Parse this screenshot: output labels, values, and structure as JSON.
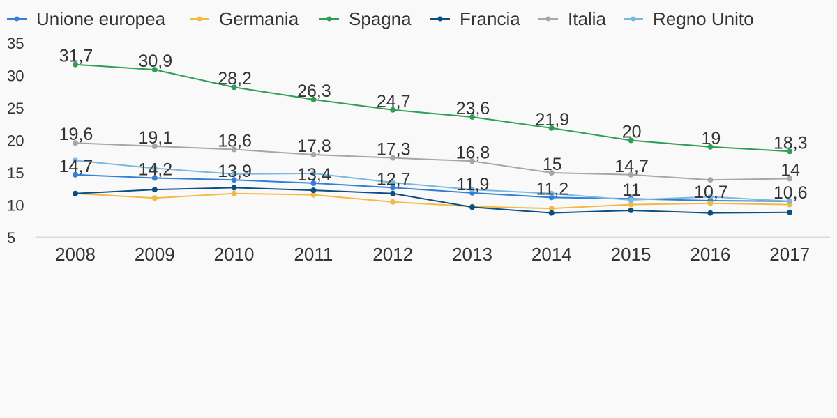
{
  "chart_data": {
    "type": "line",
    "title": "",
    "xlabel": "",
    "ylabel": "",
    "categories": [
      "2008",
      "2009",
      "2010",
      "2011",
      "2012",
      "2013",
      "2014",
      "2015",
      "2016",
      "2017"
    ],
    "yticks": [
      "35",
      "30",
      "25",
      "20",
      "15",
      "10",
      "5"
    ],
    "ylim": [
      5,
      35
    ],
    "grid": false,
    "legend_position": "top",
    "series": [
      {
        "name": "Unione europea",
        "color": "#2f80d6",
        "values": [
          14.7,
          14.2,
          13.9,
          13.4,
          12.7,
          11.9,
          11.2,
          11,
          10.7,
          10.6
        ],
        "labels": [
          "14,7",
          "14,2",
          "13,9",
          "13,4",
          "12,7",
          "11,9",
          "11,2",
          "11",
          "10,7",
          "10,6"
        ]
      },
      {
        "name": "Germania",
        "color": "#f4b942",
        "values": [
          11.8,
          11.1,
          11.8,
          11.6,
          10.5,
          9.8,
          9.5,
          10.1,
          10.3,
          10.1
        ]
      },
      {
        "name": "Spagna",
        "color": "#2e9e57",
        "values": [
          31.7,
          30.9,
          28.2,
          26.3,
          24.7,
          23.6,
          21.9,
          20,
          19,
          18.3
        ],
        "labels": [
          "31,7",
          "30,9",
          "28,2",
          "26,3",
          "24,7",
          "23,6",
          "21,9",
          "20",
          "19",
          "18,3"
        ]
      },
      {
        "name": "Francia",
        "color": "#0b4f82",
        "values": [
          11.8,
          12.4,
          12.7,
          12.3,
          11.8,
          9.7,
          8.8,
          9.2,
          8.8,
          8.9
        ]
      },
      {
        "name": "Italia",
        "color": "#a6a6a6",
        "values": [
          19.6,
          19.1,
          18.6,
          17.8,
          17.3,
          16.8,
          15,
          14.7,
          13.9,
          14.1
        ],
        "labels": [
          "19,6",
          "19,1",
          "18,6",
          "17,8",
          "17,3",
          "16,8",
          "15",
          "14,7",
          "",
          "14"
        ]
      },
      {
        "name": "Regno Unito",
        "color": "#7ab8e0",
        "values": [
          16.9,
          15.7,
          14.8,
          14.9,
          13.5,
          12.4,
          11.8,
          10.8,
          11.3,
          10.6
        ]
      }
    ]
  }
}
